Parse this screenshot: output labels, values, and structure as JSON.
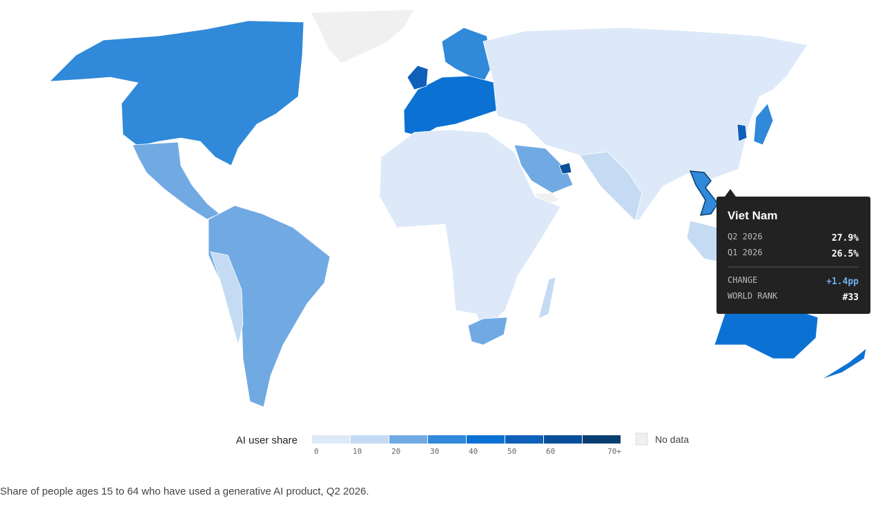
{
  "legend": {
    "title": "AI user share",
    "bins": [
      {
        "label": "0",
        "color": "#dde9f8"
      },
      {
        "label": "10",
        "color": "#c4dbf3"
      },
      {
        "label": "20",
        "color": "#71aae3"
      },
      {
        "label": "30",
        "color": "#3089d9"
      },
      {
        "label": "40",
        "color": "#0b72d3"
      },
      {
        "label": "50",
        "color": "#0f60b9"
      },
      {
        "label": "60",
        "color": "#0a4f99"
      },
      {
        "label": "70+",
        "color": "#073f70"
      }
    ],
    "no_data": "No data"
  },
  "tooltip": {
    "country": "Viet Nam",
    "rows": [
      {
        "label": "Q2 2026",
        "value": "27.9%"
      },
      {
        "label": "Q1 2026",
        "value": "26.5%"
      },
      {
        "label": "CHANGE",
        "value": "+1.4pp"
      },
      {
        "label": "WORLD RANK",
        "value": "#33"
      }
    ]
  },
  "caption": "Share of people ages 15 to 64 who have used a generative AI product, Q2 2026."
}
